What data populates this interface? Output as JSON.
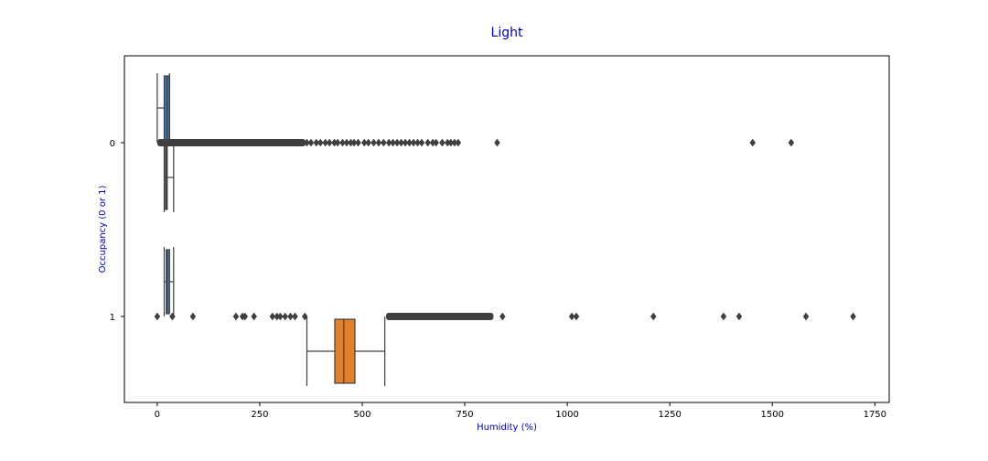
{
  "chart_data": {
    "type": "box",
    "orientation": "horizontal",
    "title": "Light",
    "xlabel": "Humidity (%)",
    "ylabel": "Occupancy (0 or 1)",
    "xlim": [
      -80,
      1785
    ],
    "x_ticks": [
      0,
      250,
      500,
      750,
      1000,
      1250,
      1500,
      1750
    ],
    "categories": [
      "0",
      "1"
    ],
    "colors": {
      "series_A": "#3b75af",
      "series_B": "#e1812c",
      "line": "#3f3f3f",
      "title": "#0000aa"
    },
    "groups": [
      {
        "category": "0",
        "boxes": [
          {
            "series": "A",
            "whisker_low": 0,
            "q1": 17,
            "median": 24,
            "q3": 30,
            "whisker_high": 30
          },
          {
            "series": "B",
            "whisker_low": 17,
            "q1": 20,
            "median": 22,
            "q3": 24,
            "whisker_high": 40
          }
        ],
        "outliers": [
          1452,
          1546,
          829,
          734,
          725,
          716,
          708,
          695,
          680,
          672,
          660,
          645,
          635,
          625,
          615,
          605,
          595,
          585,
          575,
          565,
          552,
          540,
          528,
          515,
          505,
          490,
          480,
          472,
          462,
          452,
          440,
          432,
          420,
          410,
          398,
          388,
          375,
          365
        ],
        "outlier_band": [
          0,
          362
        ]
      },
      {
        "category": "1",
        "boxes": [
          {
            "series": "A",
            "whisker_low": 17,
            "q1": 22,
            "median": 24,
            "q3": 30,
            "whisker_high": 40
          },
          {
            "series": "B",
            "whisker_low": 365,
            "q1": 433,
            "median": 455,
            "q3": 482,
            "whisker_high": 555
          }
        ],
        "outliers": [
          0,
          37,
          87,
          192,
          208,
          214,
          236,
          281,
          292,
          300,
          312,
          325,
          336,
          360,
          842,
          1011,
          1022,
          1210,
          1381,
          1419,
          1582,
          1697
        ],
        "outlier_band": [
          558,
          820
        ]
      }
    ]
  }
}
